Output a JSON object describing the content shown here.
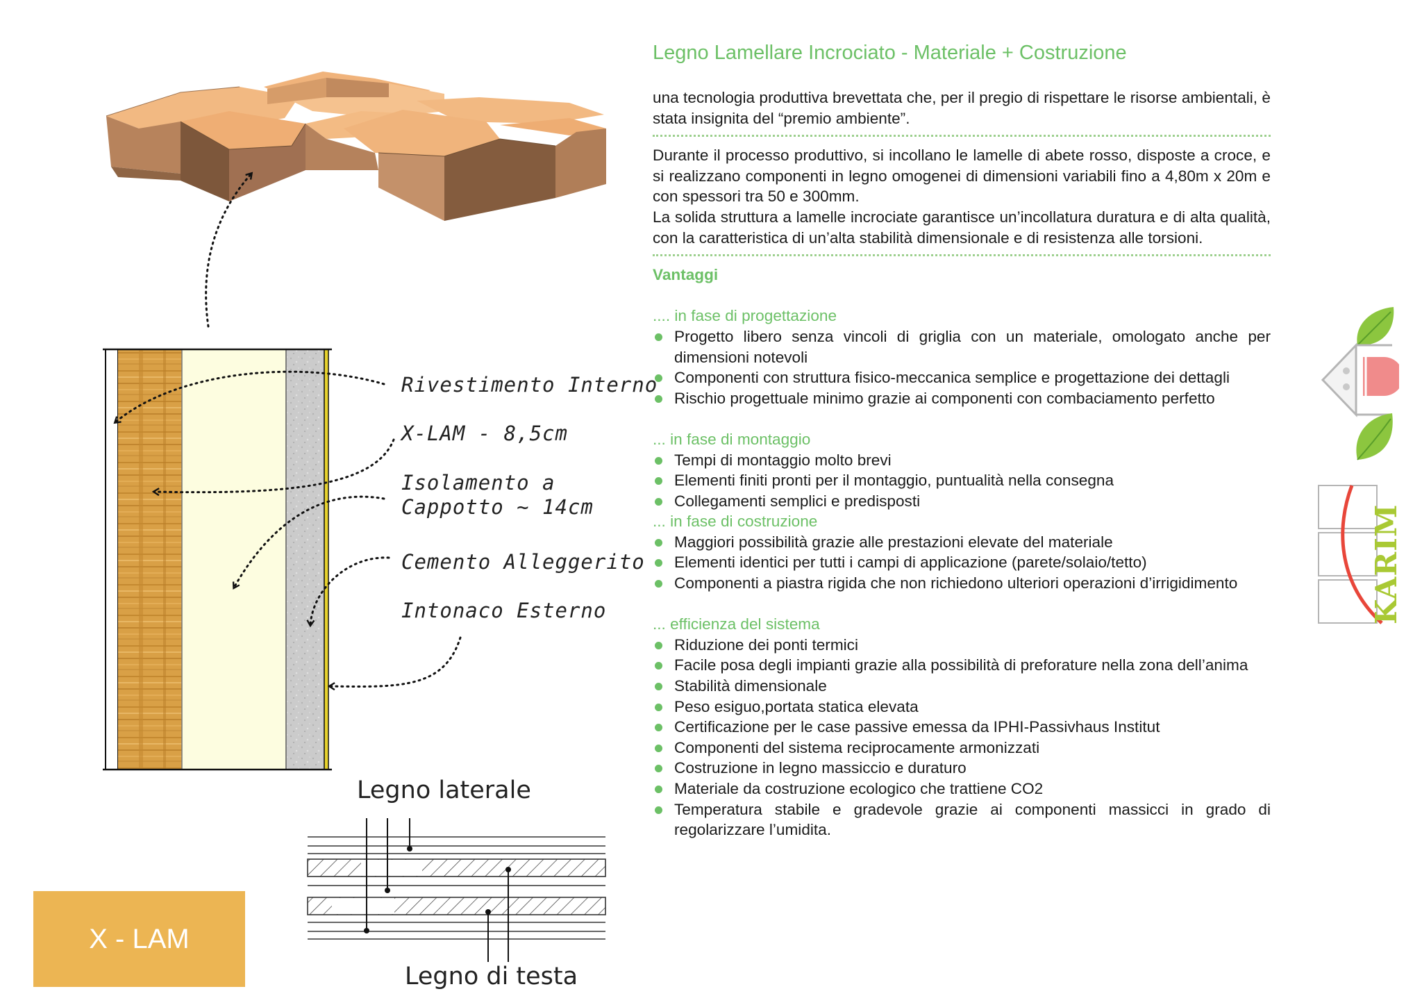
{
  "page_title": "Legno Lamellare Incrociato - Materiale + Costruzione",
  "intro": "una tecnologia produttiva brevettata che, per il pregio di rispettare le risorse ambientali, è stata insignita del “premio ambiente”.",
  "process_paragraphs": [
    "Durante il processo produttivo, si incollano le lamelle di abete rosso, disposte a croce, e si realizzano componenti in legno omogenei di dimensioni variabili fino a 4,80m x 20m e con spessori tra 50 e 300mm.",
    "La solida struttura a lamelle incrociate garantisce un’incollatura duratura e di alta qualità, con la caratteristica di un’alta stabilità dimensionale e di resistenza alle torsioni."
  ],
  "advantages_heading": "Vantaggi",
  "sections": [
    {
      "heading": ".... in fase di progettazione",
      "items": [
        "Progetto libero senza vincoli di griglia con un materiale, omologato anche per dimensioni notevoli",
        "Componenti con struttura fisico-meccanica semplice e progettazione dei dettagli",
        "Rischio progettuale minimo grazie ai componenti con combaciamento perfetto"
      ]
    },
    {
      "heading": "... in fase di montaggio",
      "items": [
        "Tempi di montaggio molto brevi",
        "Elementi finiti pronti per il montaggio, puntualità nella consegna",
        "Collegamenti semplici e predisposti"
      ]
    },
    {
      "heading": "... in fase di costruzione",
      "items": [
        "Maggiori possibilità grazie alle prestazioni elevate del materiale",
        "Elementi identici per tutti i campi di applicazione (parete/solaio/tetto)",
        "Componenti a piastra rigida che non richiedono ulteriori operazioni d’irrigidimento"
      ]
    },
    {
      "heading": "... efficienza del sistema",
      "items": [
        "Riduzione dei ponti termici",
        "Facile posa degli impianti grazie alla possibilità di preforature nella zona dell’anima",
        "Stabilità dimensionale",
        "Peso esiguo,portata statica elevata",
        "Certificazione per le case passive emessa da IPHI-Passivhaus Institut",
        "Componenti del sistema reciprocamente armonizzati",
        "Costruzione in legno massiccio e duraturo",
        "Materiale da costruzione ecologico che trattiene CO2",
        "Temperatura stabile e gradevole grazie ai componenti massicci in grado di regolarizzare l’umidita."
      ]
    }
  ],
  "wall_labels": {
    "rivestimento": "Rivestimento Interno",
    "xlam": "X-LAM - 8,5cm",
    "isolamento_1": "Isolamento a",
    "isolamento_2": "Cappotto ~ 14cm",
    "cemento": "Cemento Alleggerito",
    "intonaco": "Intonaco Esterno"
  },
  "section_labels": {
    "laterale": "Legno laterale",
    "testa": "Legno di testa"
  },
  "tag": "X - LAM",
  "logo_text": "KARIM",
  "colors": {
    "accent_green": "#6cc066",
    "tag_orange": "#ecb553",
    "wood": "#d9a046",
    "insulation": "#fdfde0",
    "render_gray": "#c8c8c8",
    "logo_green": "#a9c934",
    "logo_red": "#e8463a"
  }
}
